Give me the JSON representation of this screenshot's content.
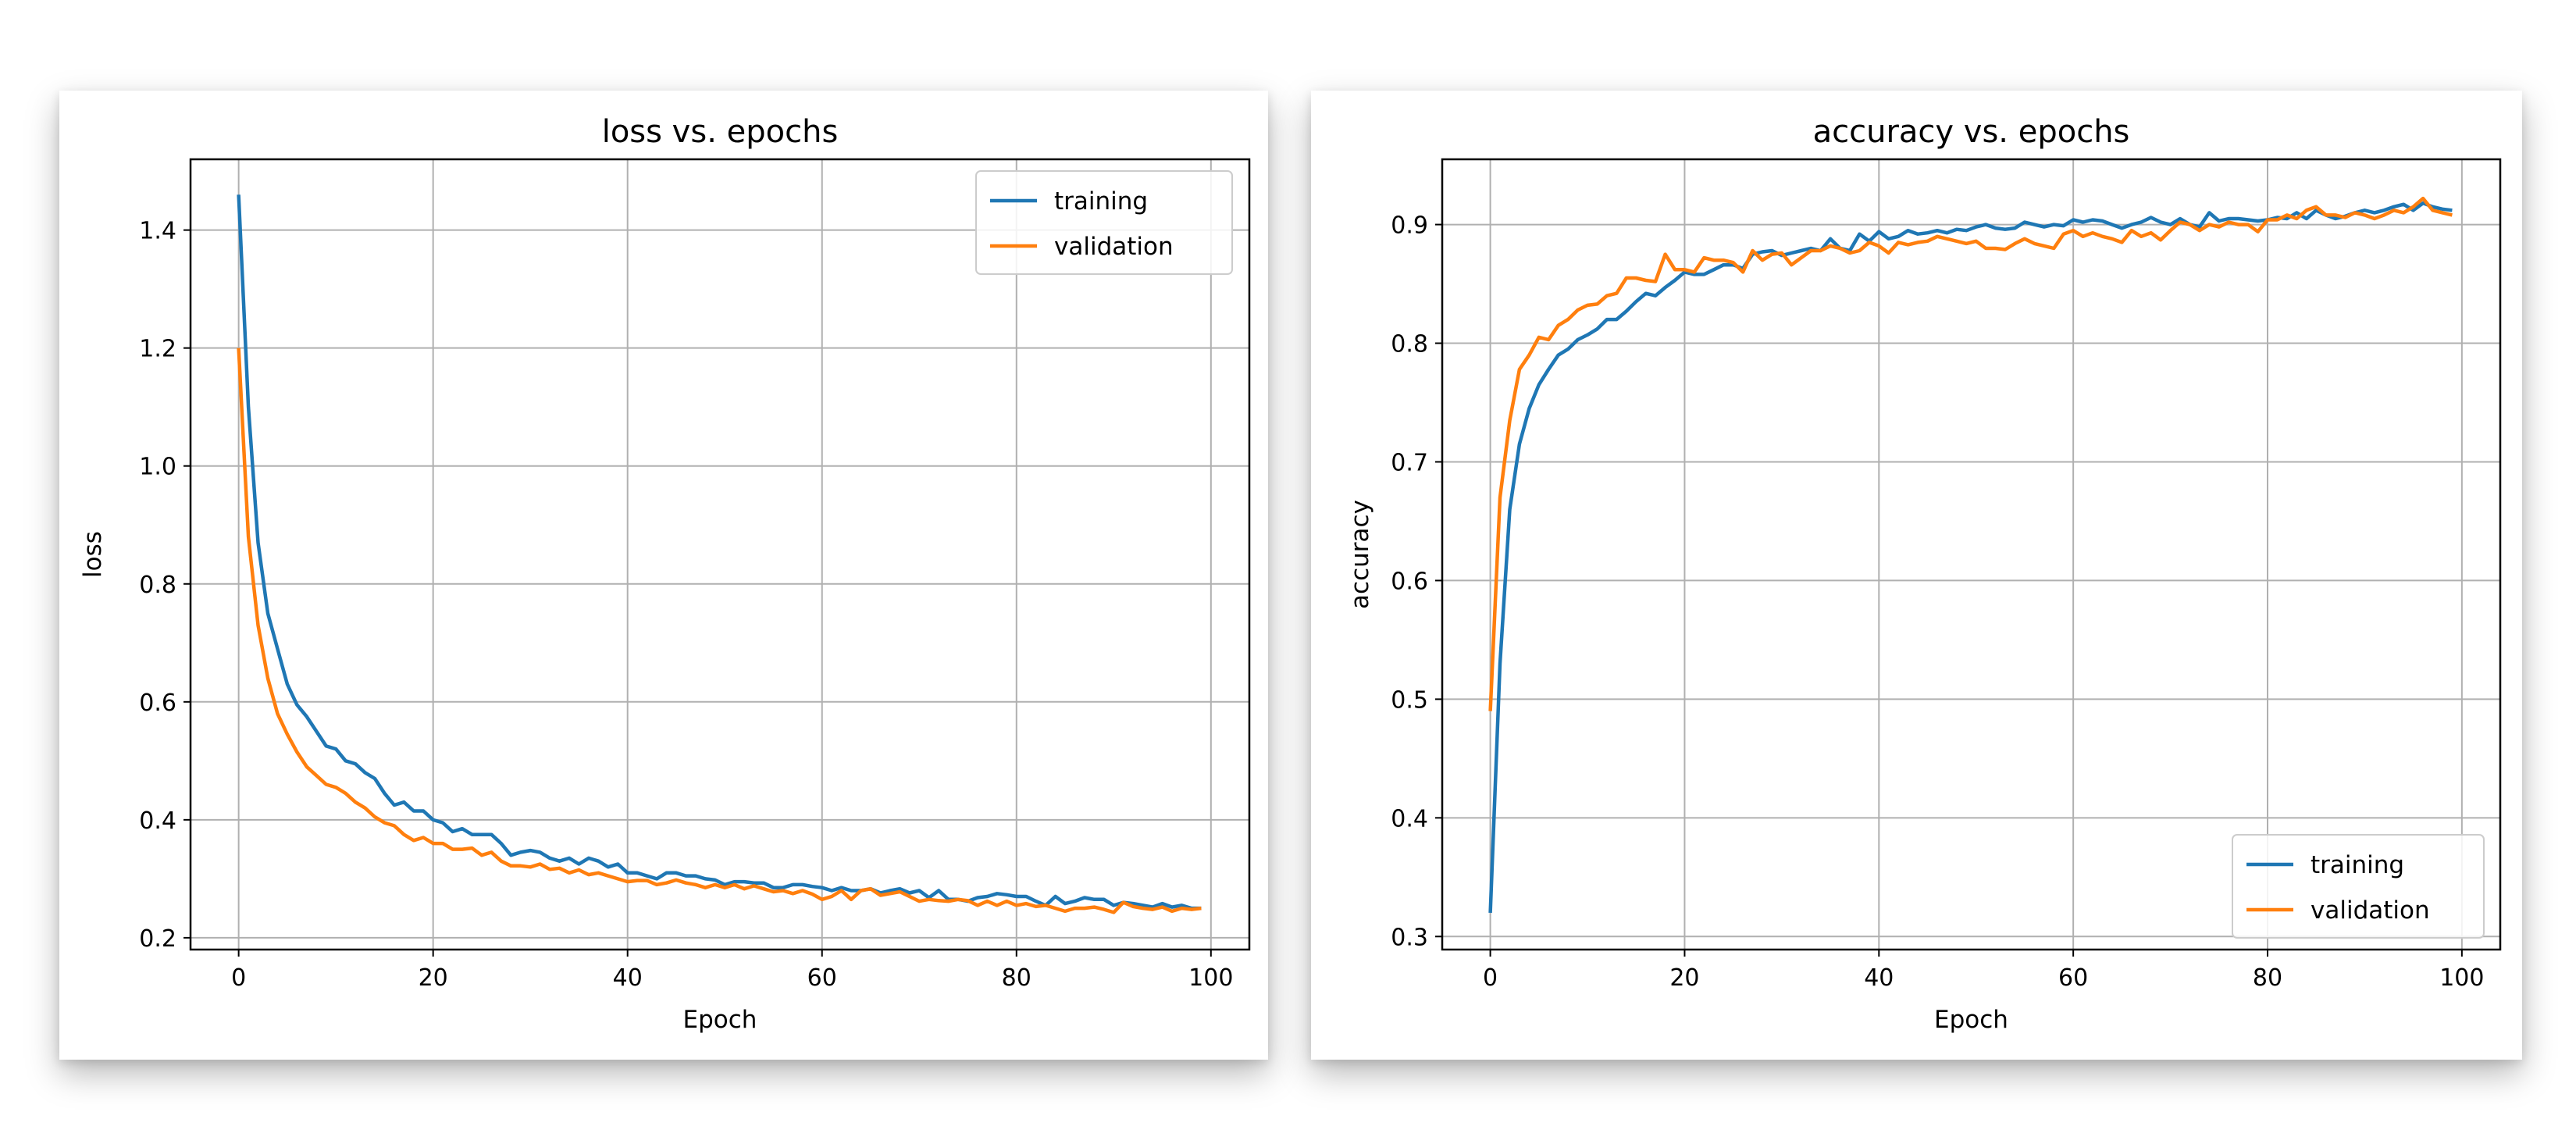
{
  "chart_data": [
    {
      "type": "line",
      "title": "loss vs. epochs",
      "xlabel": "Epoch",
      "ylabel": "loss",
      "xlim": [
        -4.95,
        103.95
      ],
      "ylim": [
        0.18,
        1.52
      ],
      "xticks": [
        0,
        20,
        40,
        60,
        80,
        100
      ],
      "yticks": [
        0.2,
        0.4,
        0.6,
        0.8,
        1.0,
        1.2,
        1.4
      ],
      "ytick_labels": [
        "0.2",
        "0.4",
        "0.6",
        "0.8",
        "1.0",
        "1.2",
        "1.4"
      ],
      "grid": true,
      "legend": "upper-right",
      "series": [
        {
          "name": "training",
          "color": "#1f77b4",
          "values": [
            1.46,
            1.1,
            0.87,
            0.75,
            0.69,
            0.63,
            0.595,
            0.575,
            0.55,
            0.525,
            0.52,
            0.5,
            0.495,
            0.48,
            0.47,
            0.445,
            0.425,
            0.43,
            0.415,
            0.415,
            0.4,
            0.395,
            0.38,
            0.385,
            0.375,
            0.375,
            0.375,
            0.36,
            0.34,
            0.345,
            0.348,
            0.345,
            0.335,
            0.33,
            0.335,
            0.325,
            0.335,
            0.33,
            0.32,
            0.325,
            0.31,
            0.31,
            0.305,
            0.3,
            0.31,
            0.31,
            0.305,
            0.305,
            0.3,
            0.298,
            0.29,
            0.295,
            0.295,
            0.293,
            0.293,
            0.285,
            0.285,
            0.29,
            0.29,
            0.287,
            0.285,
            0.28,
            0.285,
            0.28,
            0.28,
            0.283,
            0.276,
            0.28,
            0.283,
            0.276,
            0.28,
            0.268,
            0.28,
            0.265,
            0.265,
            0.262,
            0.268,
            0.27,
            0.275,
            0.273,
            0.27,
            0.27,
            0.262,
            0.255,
            0.27,
            0.258,
            0.262,
            0.268,
            0.265,
            0.265,
            0.255,
            0.26,
            0.258,
            0.255,
            0.252,
            0.258,
            0.252,
            0.255,
            0.25,
            0.25
          ]
        },
        {
          "name": "validation",
          "color": "#ff7f0e",
          "values": [
            1.2,
            0.88,
            0.73,
            0.64,
            0.58,
            0.545,
            0.515,
            0.49,
            0.475,
            0.46,
            0.455,
            0.445,
            0.43,
            0.42,
            0.405,
            0.395,
            0.39,
            0.375,
            0.365,
            0.37,
            0.36,
            0.36,
            0.35,
            0.35,
            0.352,
            0.34,
            0.345,
            0.33,
            0.322,
            0.322,
            0.32,
            0.325,
            0.316,
            0.318,
            0.31,
            0.315,
            0.307,
            0.31,
            0.305,
            0.3,
            0.295,
            0.297,
            0.297,
            0.29,
            0.293,
            0.298,
            0.293,
            0.29,
            0.285,
            0.29,
            0.285,
            0.29,
            0.283,
            0.288,
            0.283,
            0.278,
            0.28,
            0.275,
            0.28,
            0.274,
            0.265,
            0.27,
            0.28,
            0.265,
            0.28,
            0.283,
            0.272,
            0.275,
            0.278,
            0.27,
            0.262,
            0.265,
            0.263,
            0.262,
            0.265,
            0.263,
            0.255,
            0.262,
            0.255,
            0.262,
            0.255,
            0.258,
            0.253,
            0.255,
            0.25,
            0.245,
            0.25,
            0.25,
            0.252,
            0.248,
            0.243,
            0.26,
            0.253,
            0.25,
            0.248,
            0.252,
            0.245,
            0.25,
            0.248,
            0.25
          ]
        }
      ]
    },
    {
      "type": "line",
      "title": "accuracy vs. epochs",
      "xlabel": "Epoch",
      "ylabel": "accuracy",
      "xlim": [
        -4.95,
        103.95
      ],
      "ylim": [
        0.289,
        0.955
      ],
      "xticks": [
        0,
        20,
        40,
        60,
        80,
        100
      ],
      "yticks": [
        0.3,
        0.4,
        0.5,
        0.6,
        0.7,
        0.8,
        0.9
      ],
      "ytick_labels": [
        "0.3",
        "0.4",
        "0.5",
        "0.6",
        "0.7",
        "0.8",
        "0.9"
      ],
      "grid": true,
      "legend": "lower-right",
      "series": [
        {
          "name": "training",
          "color": "#1f77b4",
          "values": [
            0.32,
            0.53,
            0.66,
            0.715,
            0.745,
            0.765,
            0.778,
            0.79,
            0.795,
            0.803,
            0.807,
            0.812,
            0.82,
            0.82,
            0.827,
            0.835,
            0.842,
            0.84,
            0.847,
            0.853,
            0.86,
            0.858,
            0.858,
            0.862,
            0.866,
            0.866,
            0.863,
            0.875,
            0.877,
            0.878,
            0.874,
            0.876,
            0.878,
            0.88,
            0.878,
            0.888,
            0.88,
            0.878,
            0.892,
            0.886,
            0.894,
            0.888,
            0.89,
            0.895,
            0.892,
            0.893,
            0.895,
            0.893,
            0.896,
            0.895,
            0.898,
            0.9,
            0.897,
            0.896,
            0.897,
            0.902,
            0.9,
            0.898,
            0.9,
            0.899,
            0.904,
            0.902,
            0.904,
            0.903,
            0.9,
            0.897,
            0.9,
            0.902,
            0.906,
            0.902,
            0.9,
            0.905,
            0.9,
            0.898,
            0.91,
            0.903,
            0.905,
            0.905,
            0.904,
            0.903,
            0.904,
            0.906,
            0.905,
            0.91,
            0.905,
            0.912,
            0.908,
            0.905,
            0.907,
            0.91,
            0.912,
            0.91,
            0.912,
            0.915,
            0.917,
            0.912,
            0.918,
            0.915,
            0.913,
            0.912
          ]
        },
        {
          "name": "validation",
          "color": "#ff7f0e",
          "values": [
            0.49,
            0.67,
            0.735,
            0.778,
            0.79,
            0.805,
            0.803,
            0.815,
            0.82,
            0.828,
            0.832,
            0.833,
            0.84,
            0.842,
            0.855,
            0.855,
            0.853,
            0.852,
            0.875,
            0.862,
            0.862,
            0.86,
            0.872,
            0.87,
            0.87,
            0.868,
            0.86,
            0.878,
            0.87,
            0.875,
            0.876,
            0.866,
            0.872,
            0.878,
            0.878,
            0.882,
            0.88,
            0.876,
            0.878,
            0.885,
            0.882,
            0.876,
            0.885,
            0.883,
            0.885,
            0.886,
            0.89,
            0.888,
            0.886,
            0.884,
            0.886,
            0.88,
            0.88,
            0.879,
            0.884,
            0.888,
            0.884,
            0.882,
            0.88,
            0.892,
            0.895,
            0.89,
            0.893,
            0.89,
            0.888,
            0.885,
            0.895,
            0.89,
            0.893,
            0.887,
            0.895,
            0.902,
            0.9,
            0.895,
            0.9,
            0.898,
            0.902,
            0.9,
            0.9,
            0.894,
            0.904,
            0.904,
            0.908,
            0.905,
            0.912,
            0.915,
            0.908,
            0.908,
            0.906,
            0.91,
            0.908,
            0.905,
            0.908,
            0.912,
            0.91,
            0.915,
            0.922,
            0.912,
            0.91,
            0.908
          ]
        }
      ]
    }
  ]
}
